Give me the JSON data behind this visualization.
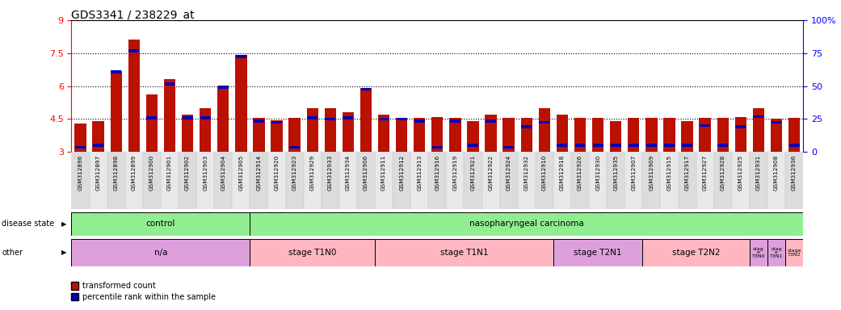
{
  "title": "GDS3341 / 238229_at",
  "samples": [
    "GSM312896",
    "GSM312897",
    "GSM312898",
    "GSM312899",
    "GSM312900",
    "GSM312901",
    "GSM312902",
    "GSM312903",
    "GSM312904",
    "GSM312905",
    "GSM312914",
    "GSM312920",
    "GSM312923",
    "GSM312929",
    "GSM312933",
    "GSM312934",
    "GSM312906",
    "GSM312911",
    "GSM312912",
    "GSM312913",
    "GSM312916",
    "GSM312919",
    "GSM312921",
    "GSM312922",
    "GSM312924",
    "GSM312932",
    "GSM312910",
    "GSM312918",
    "GSM312926",
    "GSM312930",
    "GSM312935",
    "GSM312907",
    "GSM312909",
    "GSM312915",
    "GSM312917",
    "GSM312927",
    "GSM312928",
    "GSM312925",
    "GSM312931",
    "GSM312908",
    "GSM312936"
  ],
  "red_values": [
    4.3,
    4.4,
    6.7,
    8.1,
    5.6,
    6.3,
    4.7,
    5.0,
    6.0,
    7.4,
    4.55,
    4.45,
    4.55,
    5.0,
    5.0,
    4.8,
    5.9,
    4.7,
    4.55,
    4.55,
    4.6,
    4.55,
    4.4,
    4.7,
    4.55,
    4.55,
    5.0,
    4.7,
    4.55,
    4.55,
    4.4,
    4.55,
    4.55,
    4.55,
    4.4,
    4.55,
    4.55,
    4.6,
    5.0,
    4.5,
    4.55
  ],
  "blue_values": [
    3.2,
    3.3,
    6.65,
    7.6,
    4.55,
    6.1,
    4.55,
    4.55,
    5.95,
    7.35,
    4.4,
    4.35,
    3.2,
    4.55,
    4.5,
    4.55,
    5.85,
    4.5,
    4.5,
    4.4,
    3.2,
    4.4,
    3.3,
    4.4,
    3.2,
    4.15,
    4.35,
    3.3,
    3.3,
    3.3,
    3.3,
    3.3,
    3.3,
    3.3,
    3.3,
    4.2,
    3.3,
    4.15,
    4.6,
    4.35,
    3.3
  ],
  "ylim_left": [
    3,
    9
  ],
  "yticks_left": [
    3,
    4.5,
    6,
    7.5,
    9
  ],
  "yticks_right": [
    0,
    25,
    50,
    75,
    100
  ],
  "dotted_lines": [
    4.5,
    6.0,
    7.5
  ],
  "bar_color_red": "#BB1100",
  "bar_color_blue": "#0000BB",
  "bar_width": 0.65,
  "n_control": 10,
  "disease_state_groups": [
    {
      "label": "control",
      "start": 0,
      "end": 10,
      "color": "#90EE90"
    },
    {
      "label": "nasopharyngeal carcinoma",
      "start": 10,
      "end": 41,
      "color": "#90EE90"
    }
  ],
  "other_groups": [
    {
      "label": "n/a",
      "start": 0,
      "end": 10,
      "color": "#DDA0DD"
    },
    {
      "label": "stage T1N0",
      "start": 10,
      "end": 17,
      "color": "#FFB6C1"
    },
    {
      "label": "stage T1N1",
      "start": 17,
      "end": 27,
      "color": "#FFB6C1"
    },
    {
      "label": "stage T2N1",
      "start": 27,
      "end": 32,
      "color": "#DDA0DD"
    },
    {
      "label": "stage T2N2",
      "start": 32,
      "end": 38,
      "color": "#FFB6C1"
    },
    {
      "label": "stag\ne\nT3N0",
      "start": 38,
      "end": 39,
      "color": "#DDA0DD"
    },
    {
      "label": "stag\ne\nT3N1",
      "start": 39,
      "end": 40,
      "color": "#DDA0DD"
    },
    {
      "label": "stage\nT3N2",
      "start": 40,
      "end": 41,
      "color": "#FFB6C1"
    }
  ]
}
